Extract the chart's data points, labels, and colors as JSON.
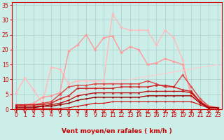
{
  "background_color": "#cceee8",
  "grid_color": "#aacccc",
  "xlabel": "Vent moyen/en rafales ( km/h )",
  "xlabel_color": "#cc0000",
  "xlabel_fontsize": 6.5,
  "tick_color": "#cc0000",
  "tick_fontsize": 5.5,
  "xlim": [
    -0.5,
    23.5
  ],
  "ylim": [
    0,
    36
  ],
  "yticks": [
    0,
    5,
    10,
    15,
    20,
    25,
    30,
    35
  ],
  "xticks": [
    0,
    1,
    2,
    3,
    4,
    5,
    6,
    7,
    8,
    9,
    10,
    11,
    12,
    13,
    14,
    15,
    16,
    17,
    18,
    19,
    20,
    21,
    22,
    23
  ],
  "series": [
    {
      "x": [
        0,
        1,
        2,
        3,
        4,
        5,
        6,
        7,
        8,
        9,
        10,
        11,
        12,
        13,
        14,
        15,
        16,
        17,
        18,
        19,
        20,
        21,
        22,
        23
      ],
      "y": [
        5.5,
        10.5,
        6.5,
        2.0,
        14.0,
        13.5,
        8.5,
        9.5,
        9.5,
        9.5,
        9.5,
        32.0,
        27.5,
        26.5,
        26.5,
        26.5,
        21.5,
        26.5,
        24.0,
        16.5,
        3.5,
        3.0,
        1.0,
        0.5
      ],
      "color": "#ffbbbb",
      "lw": 1.0,
      "marker": "D",
      "ms": 2.0
    },
    {
      "x": [
        0,
        1,
        2,
        3,
        4,
        5,
        6,
        7,
        8,
        9,
        10,
        11,
        12,
        13,
        14,
        15,
        16,
        17,
        18,
        19,
        20,
        21,
        22,
        23
      ],
      "y": [
        1.5,
        1.5,
        2.0,
        4.0,
        4.5,
        5.5,
        19.5,
        21.5,
        25.0,
        20.0,
        24.0,
        24.5,
        19.0,
        21.0,
        20.0,
        15.0,
        15.5,
        17.0,
        16.0,
        15.0,
        5.0,
        2.5,
        1.0,
        0.5
      ],
      "color": "#ff9999",
      "lw": 1.0,
      "marker": "D",
      "ms": 2.0
    },
    {
      "x": [
        0,
        1,
        2,
        3,
        4,
        5,
        6,
        7,
        8,
        9,
        10,
        11,
        12,
        13,
        14,
        15,
        16,
        17,
        18,
        19,
        20,
        21,
        22,
        23
      ],
      "y": [
        0.5,
        1.0,
        1.5,
        2.0,
        2.5,
        3.0,
        4.0,
        5.0,
        6.0,
        7.0,
        8.0,
        9.0,
        9.5,
        10.0,
        10.5,
        11.0,
        11.5,
        12.0,
        12.5,
        13.0,
        13.5,
        14.0,
        14.5,
        15.0
      ],
      "color": "#ffcccc",
      "lw": 0.9,
      "marker": null,
      "ms": 0
    },
    {
      "x": [
        0,
        1,
        2,
        3,
        4,
        5,
        6,
        7,
        8,
        9,
        10,
        11,
        12,
        13,
        14,
        15,
        16,
        17,
        18,
        19,
        20,
        21,
        22,
        23
      ],
      "y": [
        1.0,
        1.5,
        1.5,
        2.0,
        2.5,
        5.0,
        7.5,
        8.0,
        8.0,
        8.5,
        8.5,
        8.5,
        8.5,
        8.5,
        8.5,
        9.5,
        8.5,
        7.5,
        7.5,
        11.5,
        7.5,
        3.5,
        1.0,
        0.5
      ],
      "color": "#dd4444",
      "lw": 1.0,
      "marker": "*",
      "ms": 3.0
    },
    {
      "x": [
        0,
        1,
        2,
        3,
        4,
        5,
        6,
        7,
        8,
        9,
        10,
        11,
        12,
        13,
        14,
        15,
        16,
        17,
        18,
        19,
        20,
        21,
        22,
        23
      ],
      "y": [
        1.5,
        1.5,
        1.5,
        1.5,
        2.0,
        3.5,
        4.5,
        7.0,
        7.0,
        7.0,
        7.0,
        7.0,
        7.5,
        7.5,
        7.5,
        7.5,
        8.0,
        8.0,
        7.5,
        6.5,
        6.0,
        2.5,
        0.5,
        0.5
      ],
      "color": "#cc2222",
      "lw": 1.0,
      "marker": "*",
      "ms": 2.8
    },
    {
      "x": [
        0,
        1,
        2,
        3,
        4,
        5,
        6,
        7,
        8,
        9,
        10,
        11,
        12,
        13,
        14,
        15,
        16,
        17,
        18,
        19,
        20,
        21,
        22,
        23
      ],
      "y": [
        1.0,
        1.0,
        1.0,
        1.0,
        1.5,
        2.0,
        3.0,
        4.5,
        5.0,
        5.5,
        5.5,
        5.5,
        5.5,
        5.5,
        5.5,
        6.0,
        6.0,
        6.0,
        6.0,
        6.0,
        5.5,
        2.5,
        0.5,
        0.5
      ],
      "color": "#bb1111",
      "lw": 1.0,
      "marker": "*",
      "ms": 2.5
    },
    {
      "x": [
        0,
        1,
        2,
        3,
        4,
        5,
        6,
        7,
        8,
        9,
        10,
        11,
        12,
        13,
        14,
        15,
        16,
        17,
        18,
        19,
        20,
        21,
        22,
        23
      ],
      "y": [
        0.5,
        0.5,
        0.5,
        1.0,
        1.0,
        1.5,
        2.0,
        3.0,
        3.5,
        4.0,
        4.0,
        4.0,
        4.0,
        4.0,
        4.0,
        4.5,
        4.5,
        4.5,
        4.5,
        4.5,
        4.5,
        2.0,
        0.5,
        0.5
      ],
      "color": "#990000",
      "lw": 1.0,
      "marker": "*",
      "ms": 2.0
    },
    {
      "x": [
        0,
        1,
        2,
        3,
        4,
        5,
        6,
        7,
        8,
        9,
        10,
        11,
        12,
        13,
        14,
        15,
        16,
        17,
        18,
        19,
        20,
        21,
        22,
        23
      ],
      "y": [
        0.3,
        0.3,
        0.3,
        0.3,
        0.3,
        0.3,
        0.5,
        1.0,
        1.5,
        2.0,
        2.0,
        2.5,
        2.5,
        2.5,
        2.5,
        2.5,
        2.5,
        2.5,
        2.5,
        2.5,
        2.5,
        1.5,
        0.3,
        0.3
      ],
      "color": "#cc0000",
      "lw": 0.8,
      "marker": "*",
      "ms": 1.8
    }
  ],
  "arrow_angles": [
    215,
    220,
    225,
    230,
    235,
    235,
    240,
    240,
    245,
    245,
    245,
    250,
    250,
    250,
    255,
    255,
    255,
    255,
    255,
    260,
    260,
    260,
    265,
    265
  ],
  "arrow_color": "#cc0000"
}
